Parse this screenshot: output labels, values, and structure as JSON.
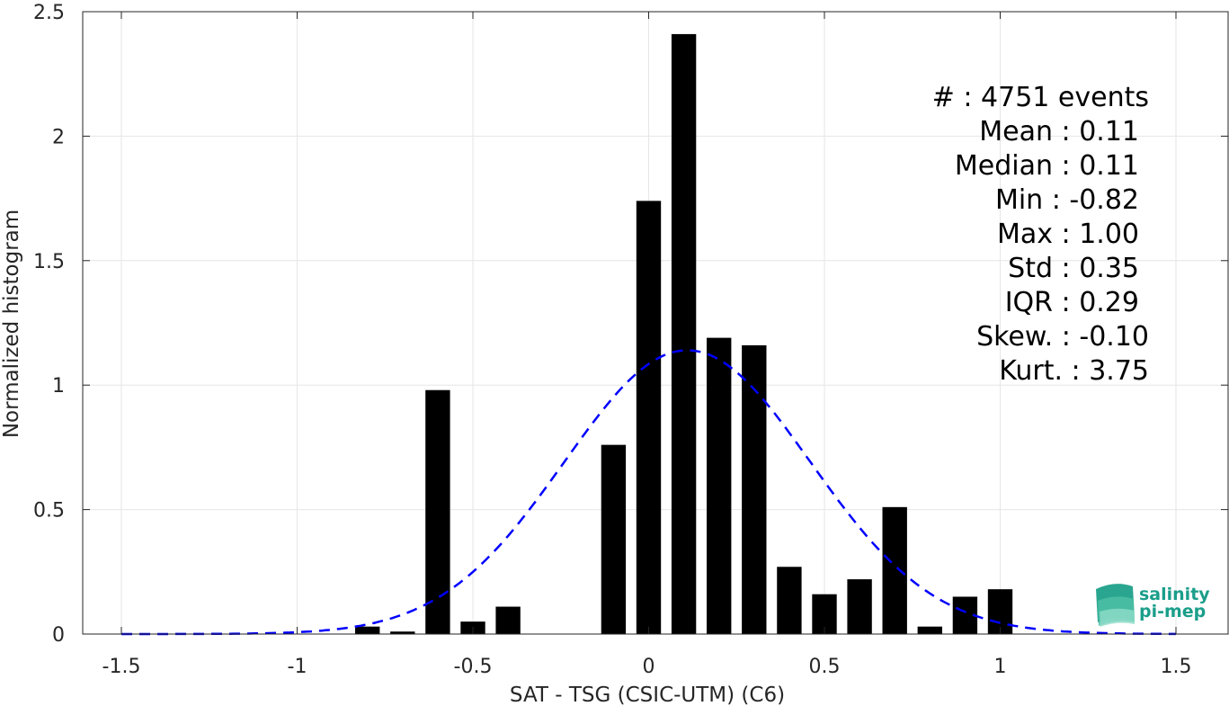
{
  "chart_data": {
    "type": "bar",
    "xlabel": "SAT - TSG (CSIC-UTM) (C6)",
    "ylabel": "Normalized histogram",
    "xlim": [
      -1.5,
      1.5
    ],
    "ylim": [
      0,
      2.5
    ],
    "xticks": [
      "-1.5",
      "-1",
      "-0.5",
      "0",
      "0.5",
      "1",
      "1.5"
    ],
    "yticks": [
      "0",
      "0.5",
      "1",
      "1.5",
      "2",
      "2.5"
    ],
    "grid": true,
    "bar_color": "#000000",
    "bars": [
      {
        "x": -0.8,
        "y": 0.03
      },
      {
        "x": -0.7,
        "y": 0.01
      },
      {
        "x": -0.6,
        "y": 0.98
      },
      {
        "x": -0.5,
        "y": 0.05
      },
      {
        "x": -0.4,
        "y": 0.11
      },
      {
        "x": -0.1,
        "y": 0.76
      },
      {
        "x": 0.0,
        "y": 1.74
      },
      {
        "x": 0.1,
        "y": 2.41
      },
      {
        "x": 0.2,
        "y": 1.19
      },
      {
        "x": 0.3,
        "y": 1.16
      },
      {
        "x": 0.4,
        "y": 0.27
      },
      {
        "x": 0.5,
        "y": 0.16
      },
      {
        "x": 0.6,
        "y": 0.22
      },
      {
        "x": 0.7,
        "y": 0.51
      },
      {
        "x": 0.8,
        "y": 0.03
      },
      {
        "x": 0.9,
        "y": 0.15
      },
      {
        "x": 1.0,
        "y": 0.18
      }
    ],
    "bar_width": 0.07,
    "fit_curve": {
      "type": "normal",
      "mean": 0.11,
      "std": 0.35,
      "color": "#0000ff",
      "style": "dashed"
    }
  },
  "stats": {
    "events": "#  : 4751 events",
    "mean": "Mean : 0.11",
    "median": "Median : 0.11",
    "min": "Min : -0.82",
    "max": "Max : 1.00",
    "std": "Std : 0.35",
    "iqr": "IQR : 0.29",
    "skew": "Skew. : -0.10",
    "kurt": "Kurt. : 3.75"
  },
  "logo": {
    "line1": "salinity",
    "line2": "pi-mep",
    "color": "#1a9e8a"
  }
}
